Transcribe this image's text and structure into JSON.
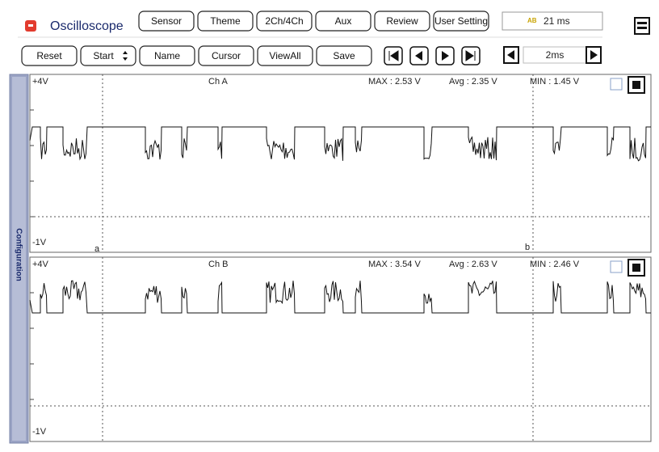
{
  "app": {
    "title": "Oscilloscope",
    "toolbar": [
      "Sensor",
      "Theme",
      "2Ch/4Ch",
      "Aux",
      "Review",
      "User Setting"
    ],
    "timer": "21 ms",
    "controls": [
      "Reset",
      "Start",
      "Name",
      "Cursor",
      "ViewAll",
      "Save"
    ],
    "timebase": "2ms",
    "sidebar": "Configuration"
  },
  "channels": [
    {
      "name": "Ch A",
      "top": "+4V",
      "bottom": "-1V",
      "max": "MAX : 2.53 V",
      "avg": "Avg : 2.35 V",
      "min": "MIN : 1.45 V"
    },
    {
      "name": "Ch B",
      "top": "+4V",
      "bottom": "-1V",
      "max": "MAX : 3.54 V",
      "avg": "Avg : 2.63 V",
      "min": "MIN : 2.46 V"
    }
  ],
  "cursors": [
    "a",
    "b"
  ]
}
